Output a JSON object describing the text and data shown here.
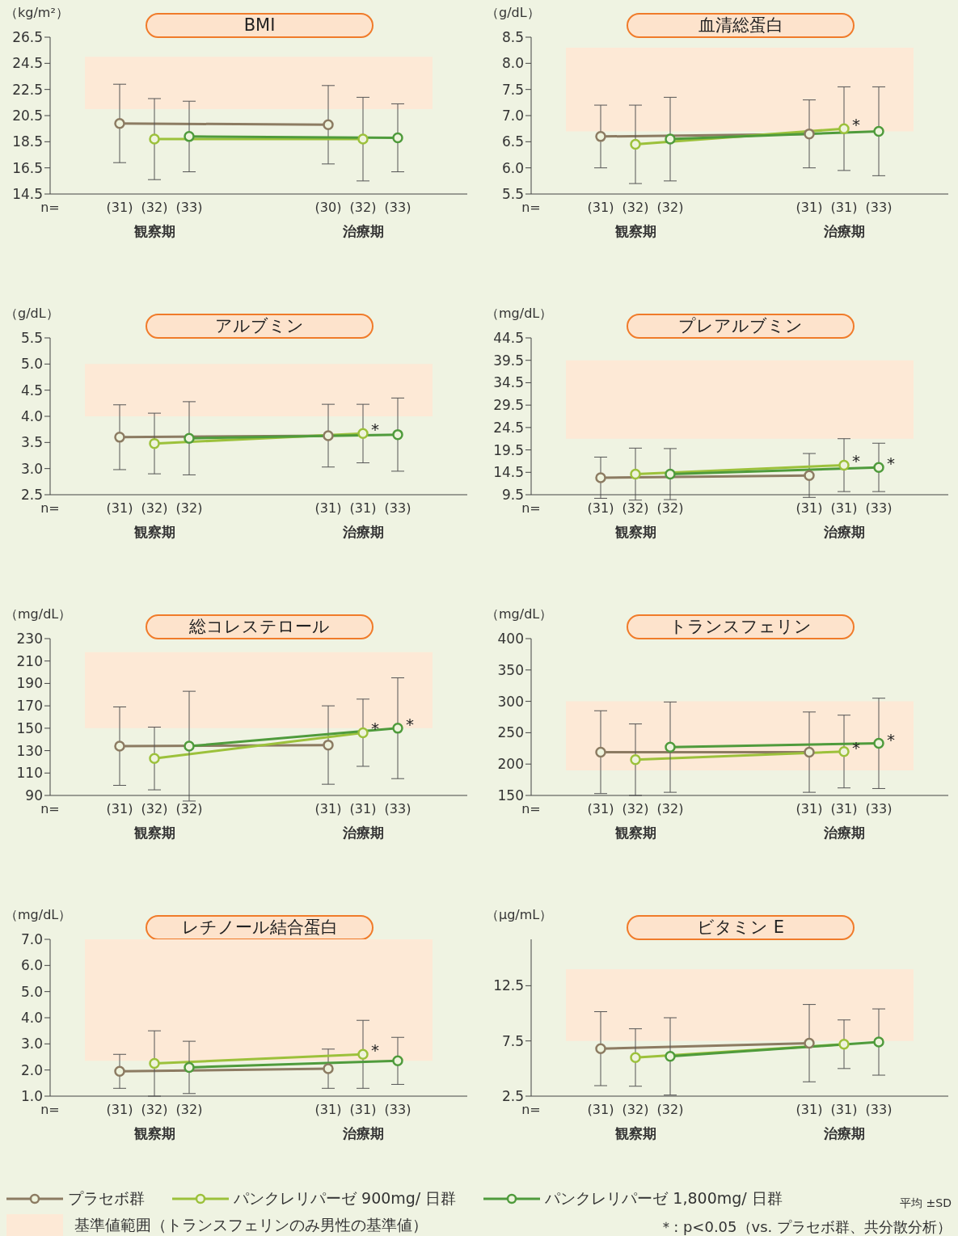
{
  "chart_data": [
    {
      "type": "line",
      "title": "BMI",
      "ylabel": "（kg/m²）",
      "marker": "circle",
      "categories": [
        "n=",
        null,
        "(31)",
        "(32)",
        "(33)",
        null,
        null,
        null,
        "(30)",
        "(32)",
        "(33)",
        null,
        null
      ],
      "ylim": [
        14.5,
        26.5
      ],
      "yticks": [
        14.5,
        16.5,
        18.5,
        20.5,
        22.5,
        24.5,
        26.5
      ],
      "bands": [
        {
          "axis": "y",
          "from": 21.0,
          "to": 25.0,
          "color": "#fde9d6"
        }
      ],
      "annotations": [
        "観察期",
        "治療期"
      ],
      "series": [
        {
          "color": "#8c7b62",
          "values": [
            null,
            null,
            19.9,
            null,
            null,
            null,
            null,
            null,
            19.8,
            null,
            null,
            null,
            null
          ],
          "errors": [
            null,
            null,
            3.0,
            null,
            null,
            null,
            null,
            null,
            3.0,
            null,
            null,
            null,
            null
          ]
        },
        {
          "color": "#9cc13b",
          "values": [
            null,
            null,
            null,
            18.7,
            null,
            null,
            null,
            null,
            null,
            18.7,
            null,
            null,
            null
          ],
          "errors": [
            null,
            null,
            null,
            3.1,
            null,
            null,
            null,
            null,
            null,
            3.2,
            null,
            null,
            null
          ]
        },
        {
          "color": "#4f9b3c",
          "values": [
            null,
            null,
            null,
            null,
            18.9,
            null,
            null,
            null,
            null,
            null,
            18.8,
            null,
            null
          ],
          "errors": [
            null,
            null,
            null,
            null,
            2.7,
            null,
            null,
            null,
            null,
            null,
            2.6,
            null,
            null
          ]
        }
      ]
    },
    {
      "type": "line",
      "title": "血清総蛋白",
      "ylabel": "（g/dL）",
      "marker": "circle",
      "categories": [
        "n=",
        null,
        "(31)",
        "(32)",
        "(32)",
        null,
        null,
        null,
        "(31)",
        "(31)",
        "(33)",
        null,
        null
      ],
      "ylim": [
        5.5,
        8.5
      ],
      "yticks": [
        5.5,
        {
          "value": 6,
          "label": "6.0"
        },
        6.5,
        {
          "value": 7,
          "label": "7.0"
        },
        7.5,
        {
          "value": 8,
          "label": "8.0"
        },
        8.5
      ],
      "bands": [
        {
          "axis": "y",
          "from": 6.7,
          "to": 8.3,
          "color": "#fde9d6"
        }
      ],
      "annotations": [
        "観察期",
        "治療期"
      ],
      "series": [
        {
          "color": "#8c7b62",
          "values": [
            null,
            null,
            6.6,
            null,
            null,
            null,
            null,
            null,
            6.65,
            null,
            null,
            null,
            null
          ],
          "errors": [
            null,
            null,
            0.6,
            null,
            null,
            null,
            null,
            null,
            0.65,
            null,
            null,
            null,
            null
          ]
        },
        {
          "color": "#9cc13b",
          "values": [
            null,
            null,
            null,
            6.45,
            null,
            null,
            null,
            null,
            null,
            6.75,
            null,
            null,
            null
          ],
          "errors": [
            null,
            null,
            null,
            0.75,
            null,
            null,
            null,
            null,
            null,
            0.8,
            null,
            null,
            null
          ],
          "value_labels": [
            null,
            null,
            null,
            null,
            null,
            null,
            null,
            null,
            null,
            "*",
            null,
            null,
            null
          ]
        },
        {
          "color": "#4f9b3c",
          "values": [
            null,
            null,
            null,
            null,
            6.55,
            null,
            null,
            null,
            null,
            null,
            6.7,
            null,
            null
          ],
          "errors": [
            null,
            null,
            null,
            null,
            0.8,
            null,
            null,
            null,
            null,
            null,
            0.85,
            null,
            null
          ]
        }
      ]
    },
    {
      "type": "line",
      "title": "アルブミン",
      "ylabel": "（g/dL）",
      "marker": "circle",
      "categories": [
        "n=",
        null,
        "(31)",
        "(32)",
        "(32)",
        null,
        null,
        null,
        "(31)",
        "(31)",
        "(33)",
        null,
        null
      ],
      "ylim": [
        2.5,
        5.5
      ],
      "yticks": [
        2.5,
        {
          "value": 3,
          "label": "3.0"
        },
        3.5,
        {
          "value": 4,
          "label": "4.0"
        },
        4.5,
        {
          "value": 5,
          "label": "5.0"
        },
        5.5
      ],
      "bands": [
        {
          "axis": "y",
          "from": 4.0,
          "to": 5.0,
          "color": "#fde9d6"
        }
      ],
      "annotations": [
        "観察期",
        "治療期"
      ],
      "series": [
        {
          "color": "#8c7b62",
          "values": [
            null,
            null,
            3.6,
            null,
            null,
            null,
            null,
            null,
            3.63,
            null,
            null,
            null,
            null
          ],
          "errors": [
            null,
            null,
            0.62,
            null,
            null,
            null,
            null,
            null,
            0.6,
            null,
            null,
            null,
            null
          ]
        },
        {
          "color": "#9cc13b",
          "values": [
            null,
            null,
            null,
            3.48,
            null,
            null,
            null,
            null,
            null,
            3.67,
            null,
            null,
            null
          ],
          "errors": [
            null,
            null,
            null,
            0.58,
            null,
            null,
            null,
            null,
            null,
            0.56,
            null,
            null,
            null
          ],
          "value_labels": [
            null,
            null,
            null,
            null,
            null,
            null,
            null,
            null,
            null,
            "*",
            null,
            null,
            null
          ]
        },
        {
          "color": "#4f9b3c",
          "values": [
            null,
            null,
            null,
            null,
            3.58,
            null,
            null,
            null,
            null,
            null,
            3.65,
            null,
            null
          ],
          "errors": [
            null,
            null,
            null,
            null,
            0.7,
            null,
            null,
            null,
            null,
            null,
            0.7,
            null,
            null
          ]
        }
      ]
    },
    {
      "type": "line",
      "title": "プレアルブミン",
      "ylabel": "（mg/dL）",
      "marker": "circle",
      "categories": [
        "n=",
        null,
        "(31)",
        "(32)",
        "(32)",
        null,
        null,
        null,
        "(31)",
        "(31)",
        "(33)",
        null,
        null
      ],
      "ylim": [
        9.5,
        44.5
      ],
      "yticks": [
        9.5,
        14.5,
        19.5,
        24.5,
        29.5,
        34.5,
        39.5,
        44.5
      ],
      "bands": [
        {
          "axis": "y",
          "from": 22.0,
          "to": 39.5,
          "color": "#fde9d6"
        }
      ],
      "annotations": [
        "観察期",
        "治療期"
      ],
      "series": [
        {
          "color": "#8c7b62",
          "values": [
            null,
            null,
            13.3,
            null,
            null,
            null,
            null,
            null,
            13.8,
            null,
            null,
            null,
            null
          ],
          "errors": [
            null,
            null,
            4.6,
            null,
            null,
            null,
            null,
            null,
            4.9,
            null,
            null,
            null,
            null
          ]
        },
        {
          "color": "#9cc13b",
          "values": [
            null,
            null,
            null,
            14.1,
            null,
            null,
            null,
            null,
            null,
            16.1,
            null,
            null,
            null
          ],
          "errors": [
            null,
            null,
            null,
            5.8,
            null,
            null,
            null,
            null,
            null,
            5.9,
            null,
            null,
            null
          ],
          "value_labels": [
            null,
            null,
            null,
            null,
            null,
            null,
            null,
            null,
            null,
            "*",
            null,
            null,
            null
          ]
        },
        {
          "color": "#4f9b3c",
          "values": [
            null,
            null,
            null,
            null,
            14.1,
            null,
            null,
            null,
            null,
            null,
            15.6,
            null,
            null
          ],
          "errors": [
            null,
            null,
            null,
            null,
            5.7,
            null,
            null,
            null,
            null,
            null,
            5.4,
            null,
            null
          ],
          "value_labels": [
            null,
            null,
            null,
            null,
            null,
            null,
            null,
            null,
            null,
            null,
            "*",
            null,
            null
          ]
        }
      ]
    },
    {
      "type": "line",
      "title": "総コレステロール",
      "ylabel": "（mg/dL）",
      "marker": "circle",
      "categories": [
        "n=",
        null,
        "(31)",
        "(32)",
        "(32)",
        null,
        null,
        null,
        "(31)",
        "(31)",
        "(33)",
        null,
        null
      ],
      "ylim": [
        90,
        230
      ],
      "yticks": [
        90,
        110,
        130,
        150,
        170,
        190,
        210,
        230
      ],
      "bands": [
        {
          "axis": "y",
          "from": 150,
          "to": 218,
          "color": "#fde9d6"
        }
      ],
      "annotations": [
        "観察期",
        "治療期"
      ],
      "series": [
        {
          "color": "#8c7b62",
          "values": [
            null,
            null,
            134,
            null,
            null,
            null,
            null,
            null,
            135,
            null,
            null,
            null,
            null
          ],
          "errors": [
            null,
            null,
            35,
            null,
            null,
            null,
            null,
            null,
            35,
            null,
            null,
            null,
            null
          ]
        },
        {
          "color": "#9cc13b",
          "values": [
            null,
            null,
            null,
            123,
            null,
            null,
            null,
            null,
            null,
            146,
            null,
            null,
            null
          ],
          "errors": [
            null,
            null,
            null,
            28,
            null,
            null,
            null,
            null,
            null,
            30,
            null,
            null,
            null
          ],
          "value_labels": [
            null,
            null,
            null,
            null,
            null,
            null,
            null,
            null,
            null,
            "*",
            null,
            null,
            null
          ]
        },
        {
          "color": "#4f9b3c",
          "values": [
            null,
            null,
            null,
            null,
            134,
            null,
            null,
            null,
            null,
            null,
            150,
            null,
            null
          ],
          "errors": [
            null,
            null,
            null,
            null,
            49,
            null,
            null,
            null,
            null,
            null,
            45,
            null,
            null
          ],
          "value_labels": [
            null,
            null,
            null,
            null,
            null,
            null,
            null,
            null,
            null,
            null,
            "*",
            null,
            null
          ]
        }
      ]
    },
    {
      "type": "line",
      "title": "トランスフェリン",
      "ylabel": "（mg/dL）",
      "marker": "circle",
      "categories": [
        "n=",
        null,
        "(31)",
        "(32)",
        "(32)",
        null,
        null,
        null,
        "(31)",
        "(31)",
        "(33)",
        null,
        null
      ],
      "ylim": [
        150,
        400
      ],
      "yticks": [
        150,
        200,
        250,
        300,
        350,
        400
      ],
      "bands": [
        {
          "axis": "y",
          "from": 190,
          "to": 300,
          "color": "#fde9d6"
        }
      ],
      "annotations": [
        "観察期",
        "治療期"
      ],
      "series": [
        {
          "color": "#8c7b62",
          "values": [
            null,
            null,
            219,
            null,
            null,
            null,
            null,
            null,
            219,
            null,
            null,
            null,
            null
          ],
          "errors": [
            null,
            null,
            66,
            null,
            null,
            null,
            null,
            null,
            64,
            null,
            null,
            null,
            null
          ]
        },
        {
          "color": "#9cc13b",
          "values": [
            null,
            null,
            null,
            207,
            null,
            null,
            null,
            null,
            null,
            220,
            null,
            null,
            null
          ],
          "errors": [
            null,
            null,
            null,
            57,
            null,
            null,
            null,
            null,
            null,
            58,
            null,
            null,
            null
          ],
          "value_labels": [
            null,
            null,
            null,
            null,
            null,
            null,
            null,
            null,
            null,
            "*",
            null,
            null,
            null
          ]
        },
        {
          "color": "#4f9b3c",
          "values": [
            null,
            null,
            null,
            null,
            227,
            null,
            null,
            null,
            null,
            null,
            233,
            null,
            null
          ],
          "errors": [
            null,
            null,
            null,
            null,
            72,
            null,
            null,
            null,
            null,
            null,
            72,
            null,
            null
          ],
          "value_labels": [
            null,
            null,
            null,
            null,
            null,
            null,
            null,
            null,
            null,
            null,
            "*",
            null,
            null
          ]
        }
      ]
    },
    {
      "type": "line",
      "title": "レチノール結合蛋白",
      "ylabel": "（mg/dL）",
      "marker": "circle",
      "categories": [
        "n=",
        null,
        "(31)",
        "(32)",
        "(32)",
        null,
        null,
        null,
        "(31)",
        "(31)",
        "(33)",
        null,
        null
      ],
      "ylim": [
        1,
        7
      ],
      "yticks": [
        {
          "value": 1,
          "label": "1.0"
        },
        {
          "value": 2,
          "label": "2.0"
        },
        {
          "value": 3,
          "label": "3.0"
        },
        {
          "value": 4,
          "label": "4.0"
        },
        {
          "value": 5,
          "label": "5.0"
        },
        {
          "value": 6,
          "label": "6.0"
        },
        {
          "value": 7,
          "label": "7.0"
        }
      ],
      "bands": [
        {
          "axis": "y",
          "from": 2.35,
          "to": 7.0,
          "color": "#fde9d6"
        }
      ],
      "annotations": [
        "観察期",
        "治療期"
      ],
      "series": [
        {
          "color": "#8c7b62",
          "values": [
            null,
            null,
            1.95,
            null,
            null,
            null,
            null,
            null,
            2.05,
            null,
            null,
            null,
            null
          ],
          "errors": [
            null,
            null,
            0.65,
            null,
            null,
            null,
            null,
            null,
            0.75,
            null,
            null,
            null,
            null
          ]
        },
        {
          "color": "#9cc13b",
          "values": [
            null,
            null,
            null,
            2.25,
            null,
            null,
            null,
            null,
            null,
            2.6,
            null,
            null,
            null
          ],
          "errors": [
            null,
            null,
            null,
            1.25,
            null,
            null,
            null,
            null,
            null,
            1.3,
            null,
            null,
            null
          ],
          "value_labels": [
            null,
            null,
            null,
            null,
            null,
            null,
            null,
            null,
            null,
            "*",
            null,
            null,
            null
          ]
        },
        {
          "color": "#4f9b3c",
          "values": [
            null,
            null,
            null,
            null,
            2.1,
            null,
            null,
            null,
            null,
            null,
            2.35,
            null,
            null
          ],
          "errors": [
            null,
            null,
            null,
            null,
            1.0,
            null,
            null,
            null,
            null,
            null,
            0.9,
            null,
            null
          ]
        }
      ]
    },
    {
      "type": "line",
      "title": "ビタミン E",
      "ylabel": "（μg/mL）",
      "marker": "circle",
      "legend": "bottom",
      "categories": [
        "n=",
        null,
        "(31)",
        "(32)",
        "(32)",
        null,
        null,
        null,
        "(31)",
        "(31)",
        "(33)",
        null,
        null
      ],
      "ylim": [
        2.5,
        16.7
      ],
      "yticks": [
        2.5,
        7.5,
        12.5
      ],
      "bands": [
        {
          "axis": "y",
          "from": 7.5,
          "to": 14.0,
          "color": "#fde9d6",
          "label": "基準値範囲（トランスフェリンのみ男性の基準値）"
        }
      ],
      "annotations": [
        "観察期",
        "治療期",
        "平均 ±SD",
        "＊: p<0.05（vs. プラセボ群、共分散分析）"
      ],
      "series": [
        {
          "name": "プラセボ群",
          "color": "#8c7b62",
          "values": [
            null,
            null,
            6.8,
            null,
            null,
            null,
            null,
            null,
            7.3,
            null,
            null,
            null,
            null
          ],
          "errors": [
            null,
            null,
            3.35,
            null,
            null,
            null,
            null,
            null,
            3.5,
            null,
            null,
            null,
            null
          ]
        },
        {
          "name": "パンクレリパーゼ 900mg/ 日群",
          "color": "#9cc13b",
          "values": [
            null,
            null,
            null,
            6.0,
            null,
            null,
            null,
            null,
            null,
            7.2,
            null,
            null,
            null
          ],
          "errors": [
            null,
            null,
            null,
            2.6,
            null,
            null,
            null,
            null,
            null,
            2.2,
            null,
            null,
            null
          ]
        },
        {
          "name": "パンクレリパーゼ 1,800mg/ 日群",
          "color": "#4f9b3c",
          "values": [
            null,
            null,
            null,
            null,
            6.1,
            null,
            null,
            null,
            null,
            null,
            7.4,
            null,
            null
          ],
          "errors": [
            null,
            null,
            null,
            null,
            3.5,
            null,
            null,
            null,
            null,
            null,
            3.0,
            null,
            null
          ]
        }
      ]
    }
  ]
}
